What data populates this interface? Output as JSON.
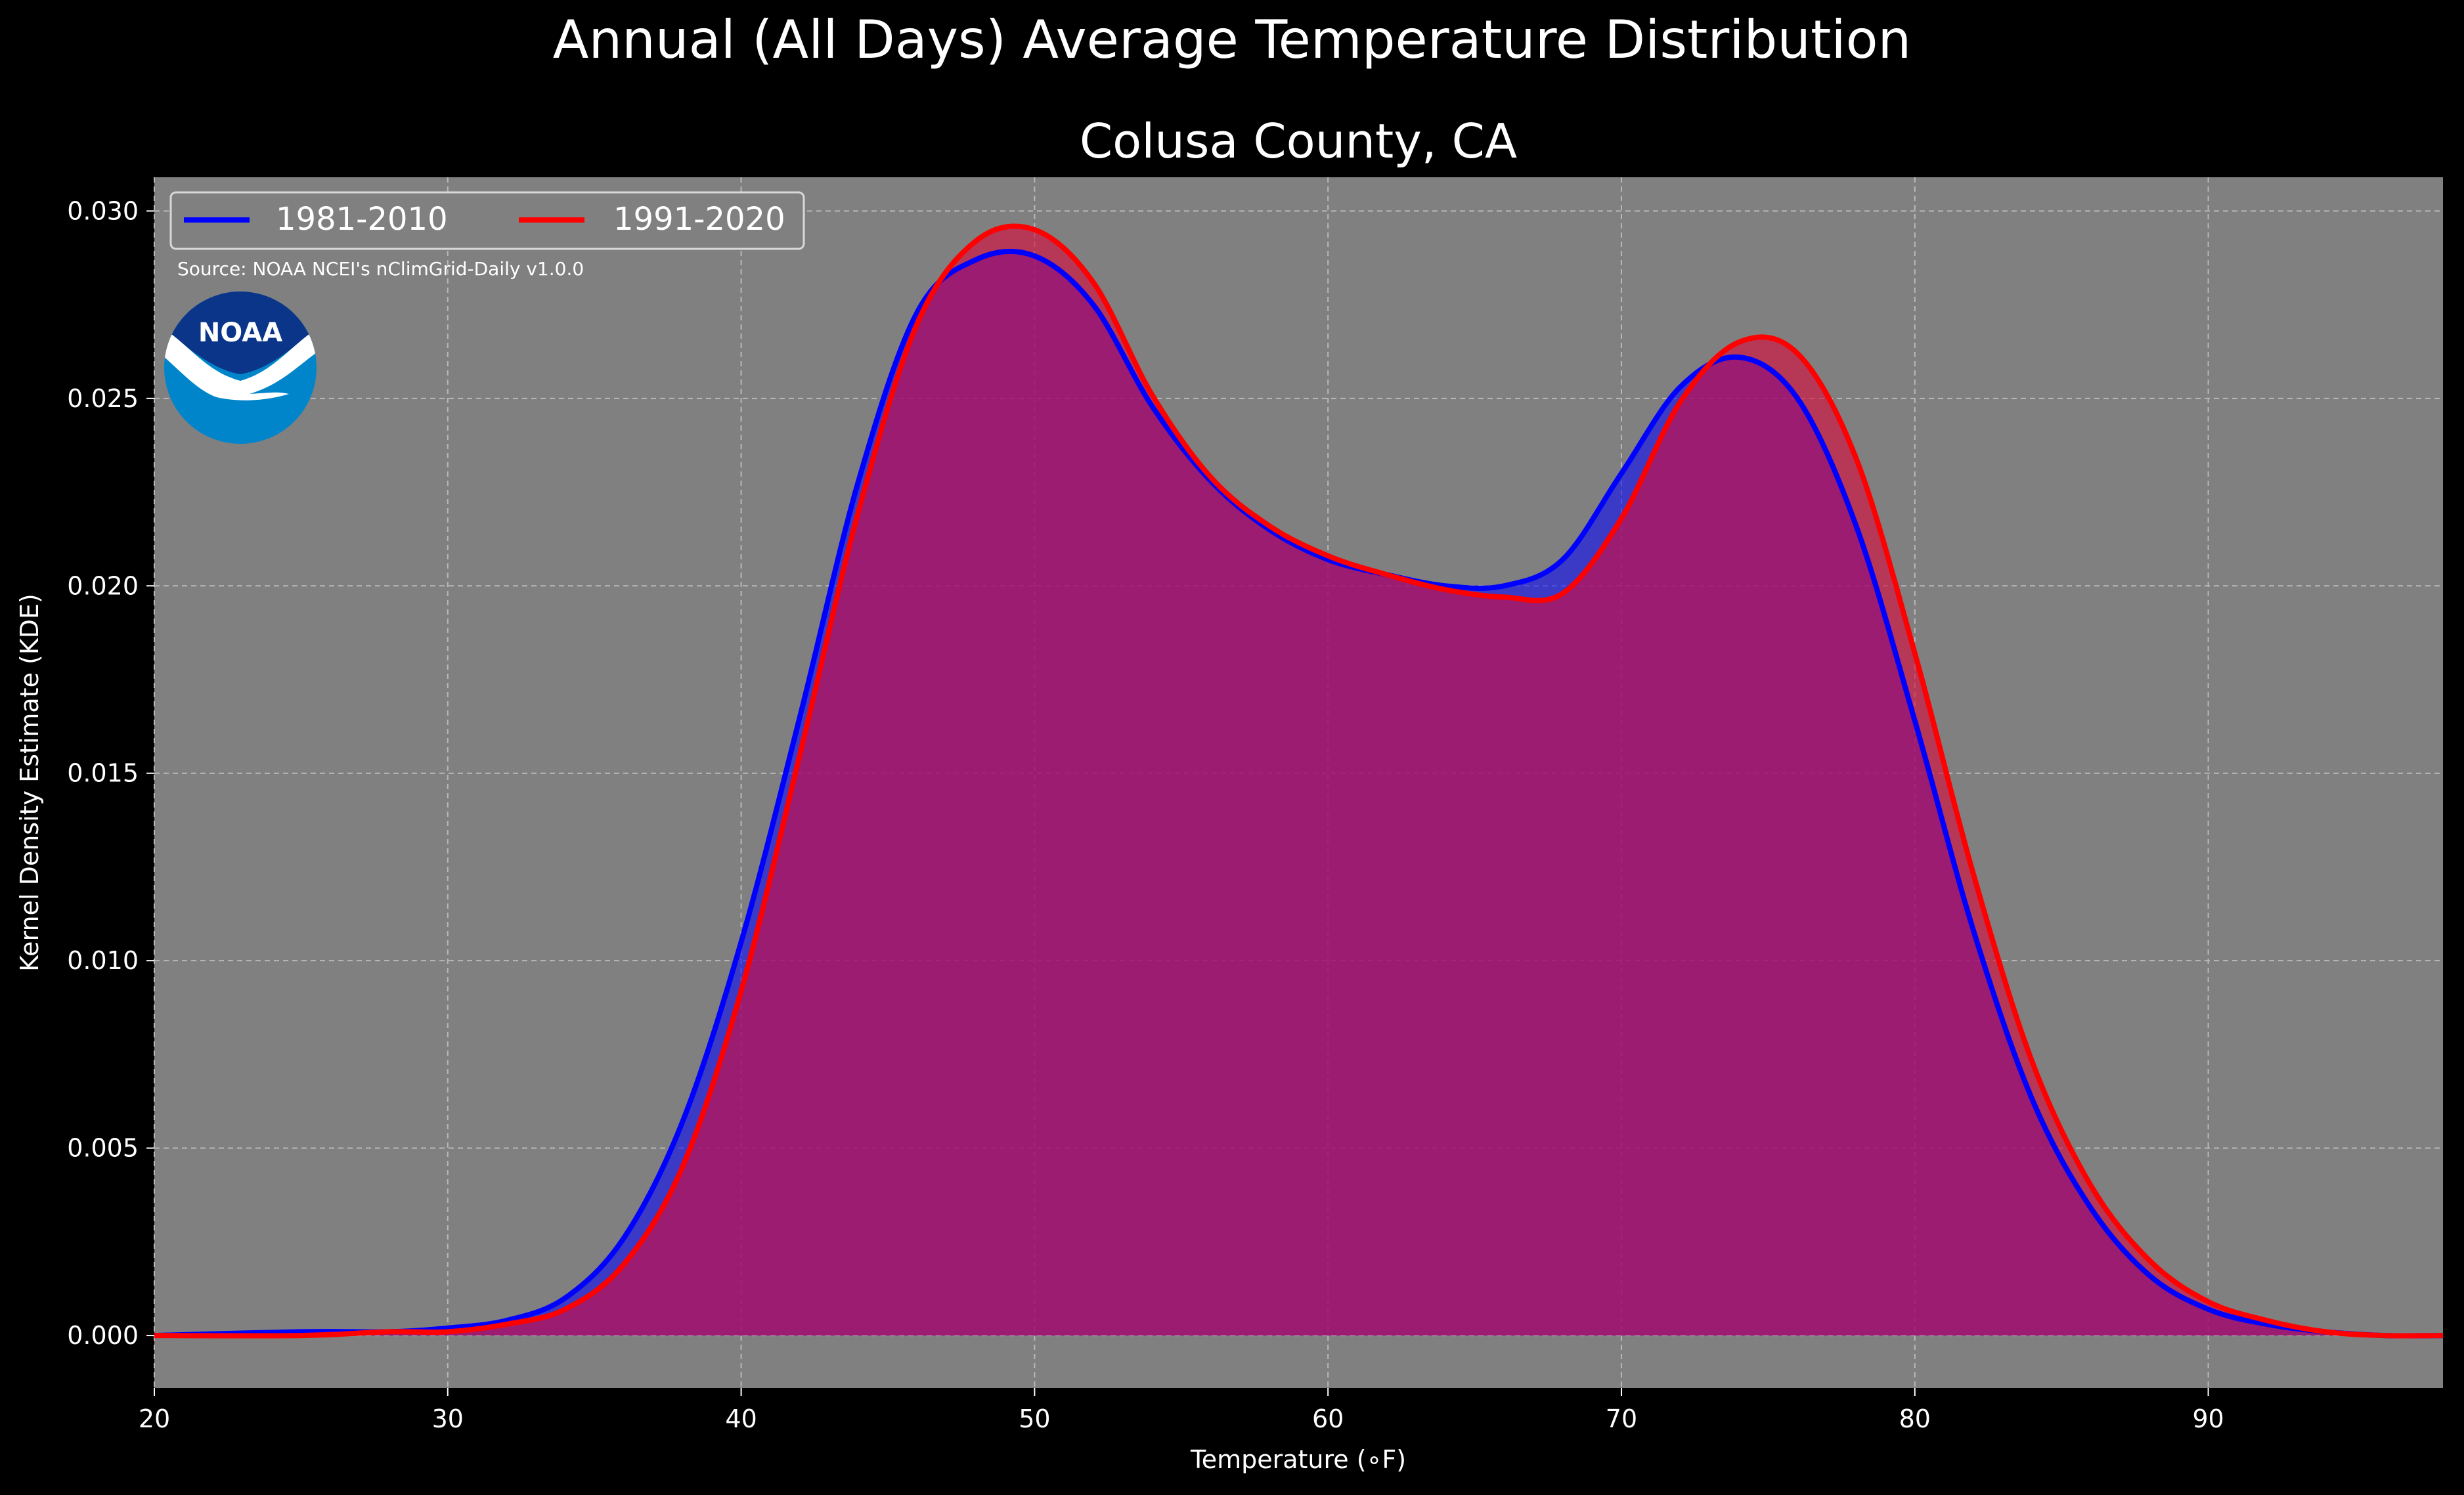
{
  "figure": {
    "suptitle": "Annual (All Days) Average Temperature Distribution",
    "background": "#000000",
    "plot_background": "#808080",
    "source_note": "Source: NOAA NCEI's nClimGrid-Daily v1.0.0",
    "logo_text": "NOAA",
    "logo_colors": {
      "top": "#0A3589",
      "bottom": "#0085CA",
      "wave": "#FFFFFF"
    }
  },
  "chart_data": {
    "type": "area",
    "title": "Colusa County, CA",
    "xlabel": "Temperature (∘F)",
    "ylabel": "Kernel Density Estimate (KDE)",
    "xlim": [
      20,
      98
    ],
    "ylim": [
      -0.0014,
      0.0309
    ],
    "xticks": [
      20,
      30,
      40,
      50,
      60,
      70,
      80,
      90
    ],
    "yticks": [
      0.0,
      0.005,
      0.01,
      0.015,
      0.02,
      0.025,
      0.03
    ],
    "ytick_labels": [
      "0.000",
      "0.005",
      "0.010",
      "0.015",
      "0.020",
      "0.025",
      "0.030"
    ],
    "grid": true,
    "legend_position": "top-left",
    "series": [
      {
        "name": "1981-2010",
        "color": "#0000FF",
        "fill": "#0000FF",
        "x": [
          20,
          25,
          28,
          30,
          32,
          34,
          36,
          38,
          40,
          42,
          44,
          46,
          48,
          50,
          52,
          54,
          56,
          58,
          60,
          62,
          64,
          66,
          68,
          70,
          72,
          74,
          76,
          78,
          80,
          82,
          84,
          86,
          88,
          90,
          92,
          94,
          96,
          98
        ],
        "y": [
          0.0,
          0.0001,
          0.0001,
          0.0002,
          0.0004,
          0.001,
          0.0026,
          0.0057,
          0.0105,
          0.0165,
          0.0228,
          0.0273,
          0.0287,
          0.0288,
          0.0275,
          0.0248,
          0.0228,
          0.0215,
          0.0207,
          0.0203,
          0.02,
          0.02,
          0.0207,
          0.023,
          0.0253,
          0.0261,
          0.025,
          0.0216,
          0.0164,
          0.0108,
          0.0063,
          0.0034,
          0.0016,
          0.0007,
          0.0003,
          0.0001,
          0.0,
          0.0
        ]
      },
      {
        "name": "1991-2020",
        "color": "#FF0000",
        "fill": "#D70A3C",
        "x": [
          20,
          25,
          28,
          30,
          32,
          34,
          36,
          38,
          40,
          42,
          44,
          46,
          48,
          50,
          52,
          54,
          56,
          58,
          60,
          62,
          64,
          66,
          68,
          70,
          72,
          74,
          76,
          78,
          80,
          82,
          84,
          86,
          88,
          90,
          92,
          94,
          96,
          98
        ],
        "y": [
          0.0,
          0.0,
          0.0001,
          0.0001,
          0.0003,
          0.0007,
          0.0019,
          0.0045,
          0.0092,
          0.0155,
          0.022,
          0.027,
          0.0292,
          0.0295,
          0.0281,
          0.0251,
          0.0229,
          0.0216,
          0.0208,
          0.0203,
          0.0199,
          0.0197,
          0.0198,
          0.0218,
          0.0249,
          0.0265,
          0.0262,
          0.0234,
          0.0182,
          0.0123,
          0.0073,
          0.004,
          0.002,
          0.0009,
          0.0004,
          0.0001,
          0.0,
          0.0
        ]
      }
    ]
  }
}
